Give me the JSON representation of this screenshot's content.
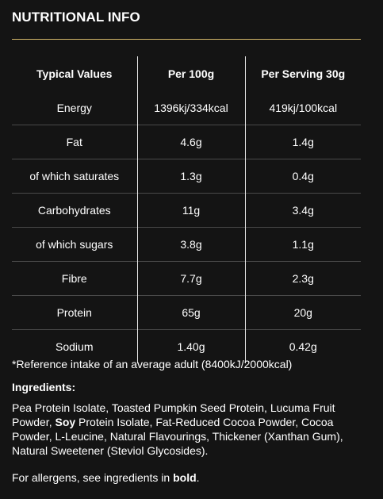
{
  "title": "NUTRITIONAL INFO",
  "table": {
    "headers": [
      "Typical Values",
      "Per 100g",
      "Per Serving 30g"
    ],
    "rows": [
      [
        "Energy",
        "1396kj/334kcal",
        "419kj/100kcal"
      ],
      [
        "Fat",
        "4.6g",
        "1.4g"
      ],
      [
        "of which saturates",
        "1.3g",
        "0.4g"
      ],
      [
        "Carbohydrates",
        "11g",
        "3.4g"
      ],
      [
        "of which sugars",
        "3.8g",
        "1.1g"
      ],
      [
        "Fibre",
        "7.7g",
        "2.3g"
      ],
      [
        "Protein",
        "65g",
        "20g"
      ],
      [
        "Sodium",
        "1.40g",
        "0.42g"
      ]
    ]
  },
  "reference_note": "*Reference intake of an average adult (8400kJ/2000kcal)",
  "ingredients": {
    "heading": "Ingredients:",
    "text_before": "Pea Protein Isolate, Toasted Pumpkin Seed Protein, Lucuma Fruit Powder, ",
    "allergen": "Soy",
    "text_after": " Protein Isolate, Fat-Reduced Cocoa Powder, Cocoa Powder, L-Leucine, Natural Flavourings, Thickener (Xanthan Gum), Natural Sweetener (Steviol Glycosides)."
  },
  "allergen_note": {
    "before": "For allergens, see ingredients in ",
    "bold": "bold",
    "after": "."
  },
  "colors": {
    "background": "#141414",
    "accent_rule": "#d4b86a",
    "text": "#ffffff"
  }
}
